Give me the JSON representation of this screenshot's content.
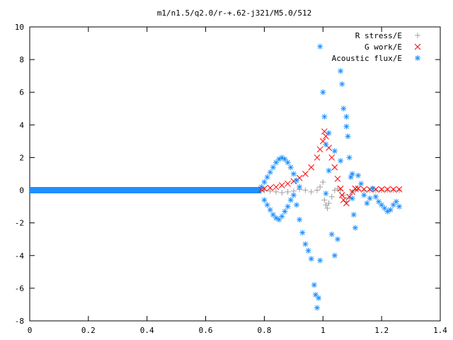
{
  "chart_data": {
    "type": "scatter",
    "title": "m1/n1.5/q2.0/r-+.62-j321/M5.0/512",
    "xlabel": "",
    "ylabel": "",
    "xlim": [
      0,
      1.4
    ],
    "ylim": [
      -8,
      10
    ],
    "xticks": [
      0,
      0.2,
      0.4,
      0.6,
      0.8,
      1,
      1.2,
      1.4
    ],
    "xtick_labels": [
      "0",
      "0.2",
      "0.4",
      "0.6",
      "0.8",
      "1",
      "1.2",
      "1.4"
    ],
    "yticks": [
      -8,
      -6,
      -4,
      -2,
      0,
      2,
      4,
      6,
      8,
      10
    ],
    "ytick_labels": [
      "-8",
      "-6",
      "-4",
      "-2",
      "0",
      "2",
      "4",
      "6",
      "8",
      "10"
    ],
    "grid": false,
    "legend_position": "top-right",
    "series": [
      {
        "name": "R stress/E",
        "marker": "plus",
        "color": "#a0a0a0",
        "points": [
          [
            0.8,
            0.0
          ],
          [
            0.82,
            -0.05
          ],
          [
            0.84,
            -0.1
          ],
          [
            0.86,
            -0.15
          ],
          [
            0.88,
            -0.1
          ],
          [
            0.9,
            -0.05
          ],
          [
            0.92,
            0.05
          ],
          [
            0.94,
            0.0
          ],
          [
            0.96,
            -0.1
          ],
          [
            0.98,
            0.0
          ],
          [
            0.99,
            0.2
          ],
          [
            1.0,
            0.5
          ],
          [
            1.005,
            -0.6
          ],
          [
            1.01,
            -0.9
          ],
          [
            1.015,
            -1.1
          ],
          [
            1.02,
            -0.8
          ],
          [
            1.03,
            -0.4
          ],
          [
            1.04,
            0.0
          ],
          [
            1.05,
            0.1
          ],
          [
            1.06,
            0.0
          ],
          [
            1.07,
            -0.3
          ],
          [
            1.08,
            -0.7
          ],
          [
            1.09,
            -0.5
          ],
          [
            1.1,
            -0.1
          ],
          [
            1.11,
            0.0
          ],
          [
            1.12,
            0.05
          ],
          [
            1.14,
            0.0
          ],
          [
            1.16,
            0.0
          ],
          [
            1.18,
            0.0
          ],
          [
            1.2,
            0.0
          ],
          [
            1.22,
            0.0
          ],
          [
            1.24,
            0.0
          ],
          [
            1.26,
            0.0
          ]
        ]
      },
      {
        "name": "G work/E",
        "marker": "cross",
        "color": "#ff0000",
        "points": [
          [
            0.79,
            0.05
          ],
          [
            0.8,
            0.1
          ],
          [
            0.82,
            0.15
          ],
          [
            0.84,
            0.2
          ],
          [
            0.86,
            0.3
          ],
          [
            0.88,
            0.4
          ],
          [
            0.9,
            0.55
          ],
          [
            0.92,
            0.75
          ],
          [
            0.94,
            1.0
          ],
          [
            0.96,
            1.4
          ],
          [
            0.98,
            2.0
          ],
          [
            0.99,
            2.5
          ],
          [
            1.0,
            3.0
          ],
          [
            1.005,
            3.6
          ],
          [
            1.01,
            3.3
          ],
          [
            1.02,
            2.6
          ],
          [
            1.03,
            2.0
          ],
          [
            1.04,
            1.4
          ],
          [
            1.05,
            0.7
          ],
          [
            1.06,
            0.1
          ],
          [
            1.065,
            -0.3
          ],
          [
            1.07,
            -0.6
          ],
          [
            1.08,
            -0.8
          ],
          [
            1.09,
            -0.4
          ],
          [
            1.1,
            -0.1
          ],
          [
            1.11,
            0.1
          ],
          [
            1.12,
            0.1
          ],
          [
            1.14,
            0.05
          ],
          [
            1.16,
            0.05
          ],
          [
            1.18,
            0.05
          ],
          [
            1.2,
            0.05
          ],
          [
            1.22,
            0.05
          ],
          [
            1.24,
            0.05
          ],
          [
            1.26,
            0.05
          ]
        ]
      },
      {
        "name": "Acoustic flux/E",
        "marker": "star",
        "color": "#1e90ff",
        "points": [
          [
            0.79,
            0.2
          ],
          [
            0.8,
            0.5
          ],
          [
            0.81,
            0.8
          ],
          [
            0.82,
            1.1
          ],
          [
            0.83,
            1.4
          ],
          [
            0.84,
            1.7
          ],
          [
            0.85,
            1.9
          ],
          [
            0.86,
            2.0
          ],
          [
            0.87,
            1.9
          ],
          [
            0.88,
            1.7
          ],
          [
            0.89,
            1.4
          ],
          [
            0.9,
            1.0
          ],
          [
            0.91,
            0.6
          ],
          [
            0.92,
            0.2
          ],
          [
            0.8,
            -0.6
          ],
          [
            0.81,
            -0.9
          ],
          [
            0.82,
            -1.2
          ],
          [
            0.83,
            -1.5
          ],
          [
            0.84,
            -1.7
          ],
          [
            0.85,
            -1.8
          ],
          [
            0.86,
            -1.6
          ],
          [
            0.87,
            -1.3
          ],
          [
            0.88,
            -1.0
          ],
          [
            0.89,
            -0.6
          ],
          [
            0.9,
            -0.3
          ],
          [
            0.91,
            -0.9
          ],
          [
            0.92,
            -1.8
          ],
          [
            0.93,
            -2.6
          ],
          [
            0.94,
            -3.3
          ],
          [
            0.95,
            -3.7
          ],
          [
            0.96,
            -4.2
          ],
          [
            0.97,
            -5.8
          ],
          [
            0.975,
            -6.4
          ],
          [
            0.98,
            -7.2
          ],
          [
            0.985,
            -6.6
          ],
          [
            0.99,
            -4.3
          ],
          [
            1.0,
            6.0
          ],
          [
            1.005,
            4.5
          ],
          [
            1.01,
            2.8
          ],
          [
            1.02,
            1.2
          ],
          [
            1.03,
            -2.7
          ],
          [
            1.04,
            -4.0
          ],
          [
            1.05,
            -3.0
          ],
          [
            1.06,
            7.3
          ],
          [
            1.065,
            6.5
          ],
          [
            1.07,
            5.0
          ],
          [
            1.08,
            4.5
          ],
          [
            1.085,
            3.3
          ],
          [
            1.09,
            2.0
          ],
          [
            1.095,
            0.8
          ],
          [
            1.1,
            -0.5
          ],
          [
            1.105,
            -1.5
          ],
          [
            1.11,
            -2.3
          ],
          [
            1.12,
            0.9
          ],
          [
            1.13,
            0.4
          ],
          [
            1.14,
            -0.3
          ],
          [
            1.15,
            -0.8
          ],
          [
            1.16,
            -0.5
          ],
          [
            1.17,
            0.1
          ],
          [
            1.18,
            -0.4
          ],
          [
            1.19,
            -0.7
          ],
          [
            1.2,
            -0.9
          ],
          [
            1.21,
            -1.1
          ],
          [
            1.22,
            -1.3
          ],
          [
            1.23,
            -1.2
          ],
          [
            1.24,
            -0.9
          ],
          [
            1.25,
            -0.7
          ],
          [
            1.26,
            -1.0
          ],
          [
            0.99,
            8.8
          ],
          [
            1.01,
            -0.2
          ],
          [
            1.02,
            3.5
          ],
          [
            1.04,
            2.4
          ],
          [
            1.06,
            1.8
          ],
          [
            1.08,
            3.9
          ],
          [
            1.1,
            1.0
          ]
        ]
      }
    ]
  }
}
